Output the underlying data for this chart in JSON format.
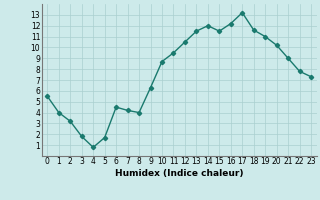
{
  "x": [
    0,
    1,
    2,
    3,
    4,
    5,
    6,
    7,
    8,
    9,
    10,
    11,
    12,
    13,
    14,
    15,
    16,
    17,
    18,
    19,
    20,
    21,
    22,
    23
  ],
  "y": [
    5.5,
    4.0,
    3.2,
    1.8,
    0.8,
    1.7,
    4.5,
    4.2,
    4.0,
    6.3,
    8.7,
    9.5,
    10.5,
    11.5,
    12.0,
    11.5,
    12.2,
    13.2,
    11.6,
    11.0,
    10.2,
    9.0,
    7.8,
    7.3
  ],
  "line_color": "#1a7a6e",
  "bg_color": "#cdeaea",
  "grid_color": "#aacfcf",
  "xlabel": "Humidex (Indice chaleur)",
  "ylim": [
    0,
    14
  ],
  "xlim": [
    -0.5,
    23.5
  ],
  "yticks": [
    1,
    2,
    3,
    4,
    5,
    6,
    7,
    8,
    9,
    10,
    11,
    12,
    13
  ],
  "xticks": [
    0,
    1,
    2,
    3,
    4,
    5,
    6,
    7,
    8,
    9,
    10,
    11,
    12,
    13,
    14,
    15,
    16,
    17,
    18,
    19,
    20,
    21,
    22,
    23
  ],
  "marker": "D",
  "markersize": 2.2,
  "linewidth": 1.0,
  "xlabel_fontsize": 6.5,
  "tick_fontsize": 5.5
}
